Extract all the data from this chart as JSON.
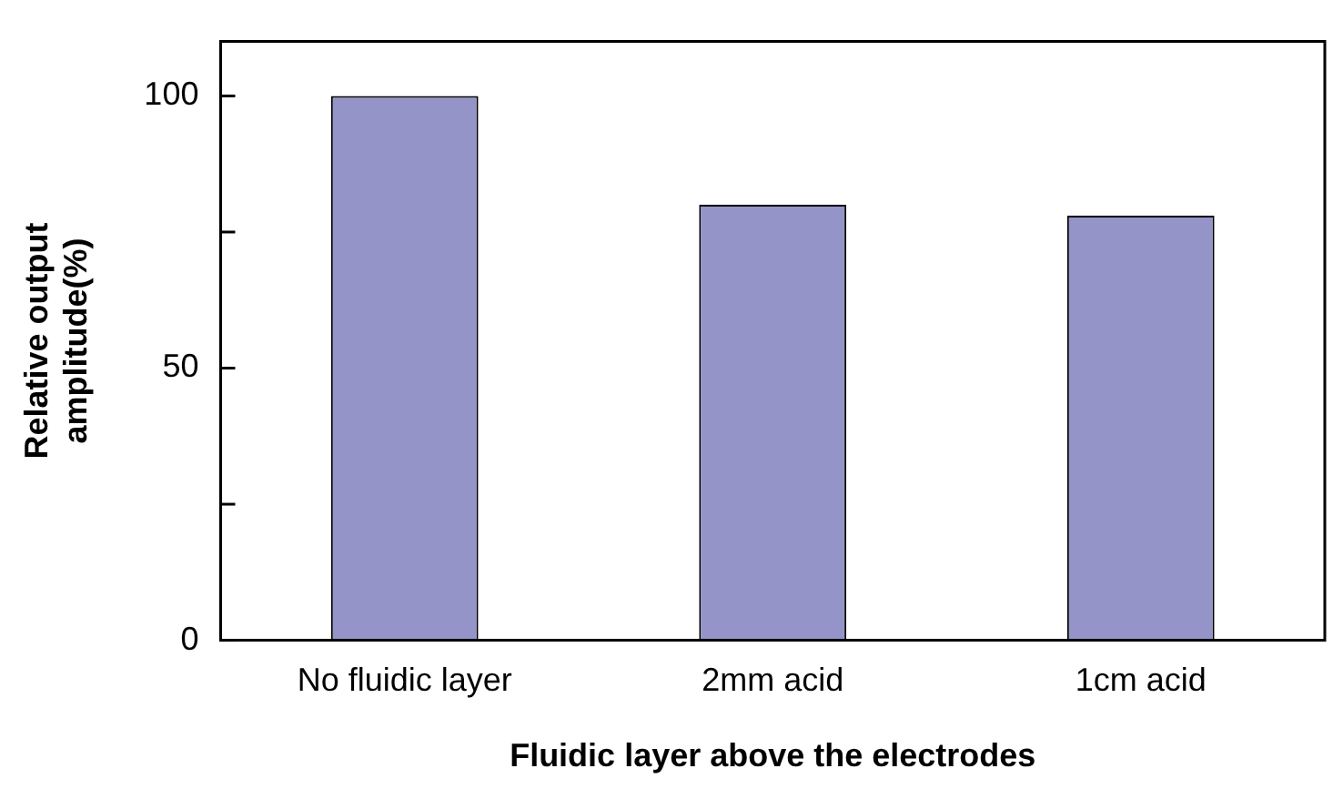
{
  "chart_data": {
    "type": "bar",
    "xlabel": "Fluidic layer above the electrodes",
    "ylabel": "Relative output amplitude(%)",
    "categories": [
      "No fluidic layer",
      "2mm acid",
      "1cm acid"
    ],
    "values": [
      100,
      80,
      78
    ],
    "color": "#9494c8",
    "ylim": [
      0,
      110
    ],
    "yticks": [
      0,
      {
        "value": 25,
        "label": null
      },
      50,
      {
        "value": 75,
        "label": null
      },
      100
    ],
    "grid": false,
    "legend": false
  }
}
